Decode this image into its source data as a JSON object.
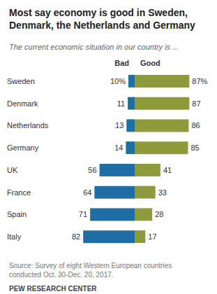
{
  "chart_data": {
    "type": "bar",
    "orientation": "horizontal",
    "title": "Most say economy is good in Sweden, Denmark, the Netherlands and Germany",
    "subtitle": "The current economic situation in our country is ...",
    "source": "Source: Survey of eight Western European countries conducted Oct. 30-Dec. 20, 2017.",
    "credit": "PEW RESEARCH CENTER",
    "categories": [
      "Sweden",
      "Denmark",
      "Netherlands",
      "Germany",
      "UK",
      "France",
      "Spain",
      "Italy"
    ],
    "series": [
      {
        "name": "Bad",
        "color": "#1f6fa5",
        "values": [
          10,
          11,
          13,
          14,
          56,
          64,
          71,
          82
        ],
        "value_labels": [
          "10%",
          "11",
          "13",
          "14",
          "56",
          "64",
          "71",
          "82"
        ]
      },
      {
        "name": "Good",
        "color": "#8d9b3d",
        "values": [
          87,
          87,
          86,
          85,
          41,
          33,
          28,
          17
        ],
        "value_labels": [
          "87%",
          "87",
          "86",
          "85",
          "41",
          "33",
          "28",
          "17"
        ]
      }
    ],
    "xlim": [
      0,
      90
    ],
    "data_labels": true,
    "tick_labels": "y",
    "grid": false
  }
}
